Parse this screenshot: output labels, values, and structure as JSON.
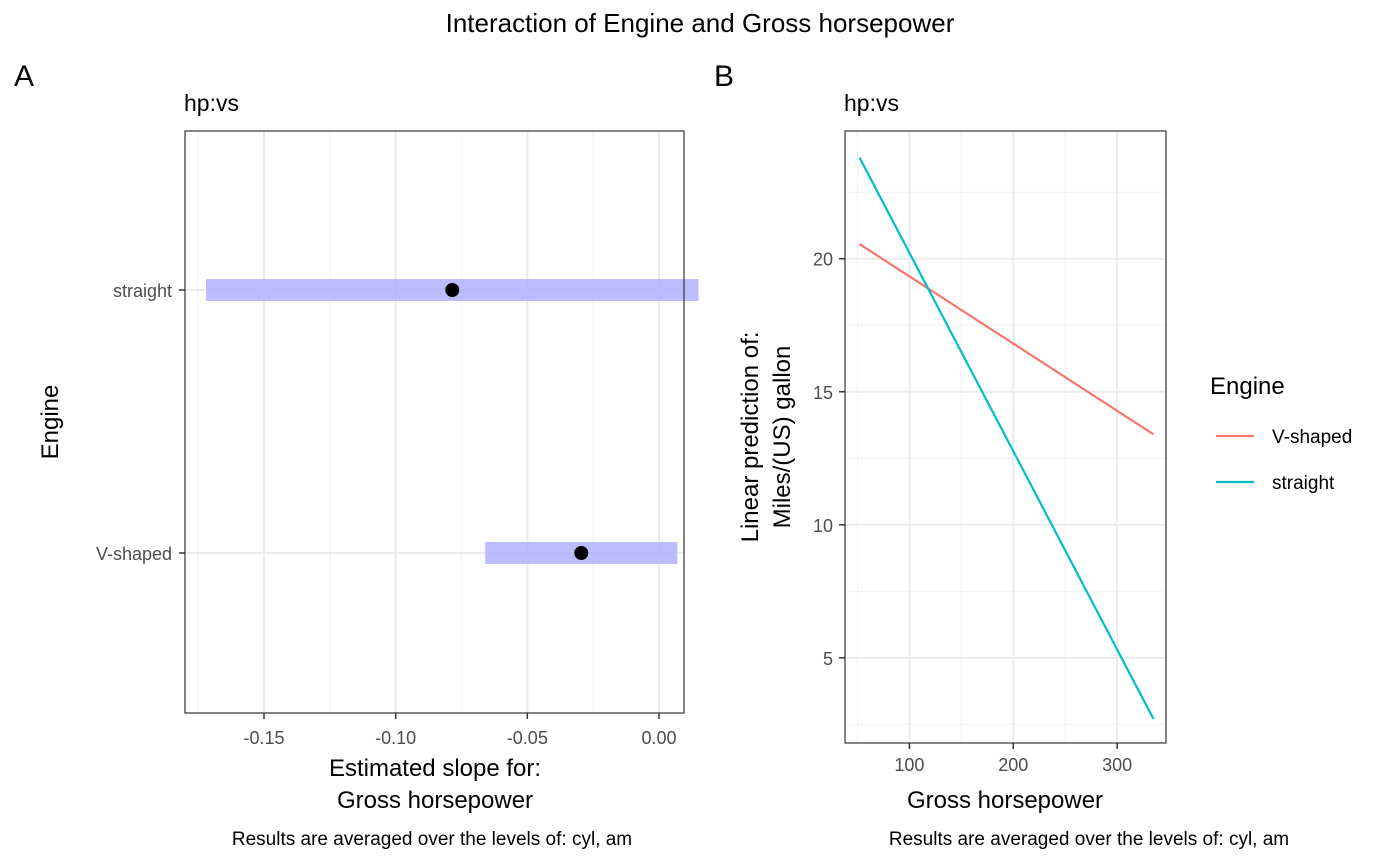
{
  "title": "Interaction of Engine and Gross horsepower",
  "chart_data": [
    {
      "type": "forest",
      "tag": "A",
      "subtitle": "hp:vs",
      "xlabel_line1": "Estimated slope for:",
      "xlabel_line2": "Gross horsepower",
      "ylabel": "Engine",
      "caption": "Results are averaged over the levels of: cyl, am",
      "xlim": [
        -0.18,
        0.0095
      ],
      "xticks": [
        -0.15,
        -0.1,
        -0.05,
        0.0
      ],
      "xtick_labels": [
        "-0.15",
        "-0.10",
        "-0.05",
        "0.00"
      ],
      "categories": [
        "V-shaped",
        "straight"
      ],
      "estimates": [
        {
          "category": "straight",
          "estimate": -0.0785,
          "lower": -0.172,
          "upper": 0.015
        },
        {
          "category": "V-shaped",
          "estimate": -0.0295,
          "lower": -0.066,
          "upper": 0.007
        }
      ],
      "interval_color": "#b0b0ff",
      "point_color": "#000000",
      "grid": true
    },
    {
      "type": "line",
      "tag": "B",
      "subtitle": "hp:vs",
      "xlabel": "Gross horsepower",
      "ylabel_line1": "Linear prediction of:",
      "ylabel_line2": "Miles/(US) gallon",
      "caption": "Results are averaged over the levels of: cyl, am",
      "xlim": [
        38,
        347
      ],
      "ylim": [
        1.8,
        24.8
      ],
      "xticks": [
        100,
        200,
        300
      ],
      "xtick_labels": [
        "100",
        "200",
        "300"
      ],
      "yticks": [
        5,
        10,
        15,
        20
      ],
      "ytick_labels": [
        "5",
        "10",
        "15",
        "20"
      ],
      "legend_title": "Engine",
      "legend_position": "right",
      "series": [
        {
          "name": "V-shaped",
          "color": "#f8766d",
          "x": [
            52,
            335
          ],
          "y": [
            20.55,
            13.4
          ]
        },
        {
          "name": "straight",
          "color": "#00bfc4",
          "x": [
            52,
            335
          ],
          "y": [
            23.8,
            2.7
          ]
        }
      ],
      "grid": true
    }
  ]
}
